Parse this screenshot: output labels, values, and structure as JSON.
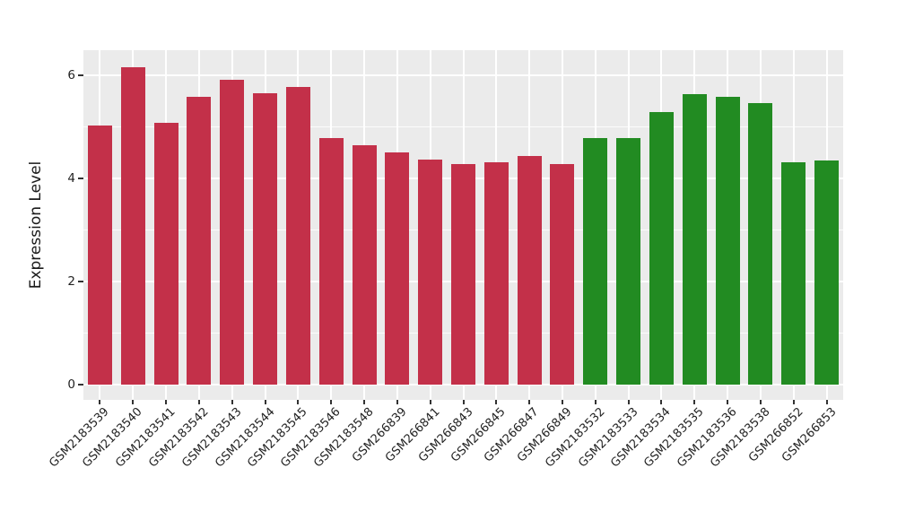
{
  "chart_data": {
    "type": "bar",
    "title": "",
    "xlabel": "",
    "ylabel": "Expression Level",
    "ylim": [
      -0.3,
      6.5
    ],
    "yticks_major": [
      0,
      2,
      4,
      6
    ],
    "yticks_minor": [
      1,
      3,
      5
    ],
    "legend": "none",
    "grid": "white major+minor horizontal lines and per-category vertical lines on gray panel",
    "panel_background": "#EBEBEB",
    "gridline_color": "#FFFFFF",
    "tick_color": "#333333",
    "group_colors": {
      "left_group_red": "#C33049",
      "right_group_green": "#228B22"
    },
    "categories": [
      "GSM2183539",
      "GSM2183540",
      "GSM2183541",
      "GSM2183542",
      "GSM2183543",
      "GSM2183544",
      "GSM2183545",
      "GSM2183546",
      "GSM2183548",
      "GSM266839",
      "GSM266841",
      "GSM266843",
      "GSM266845",
      "GSM266847",
      "GSM266849",
      "GSM2183532",
      "GSM2183533",
      "GSM2183534",
      "GSM2183535",
      "GSM2183536",
      "GSM2183538",
      "GSM266852",
      "GSM266853"
    ],
    "values": [
      5.03,
      6.16,
      5.07,
      5.58,
      5.92,
      5.65,
      5.77,
      4.78,
      4.64,
      4.5,
      4.37,
      4.27,
      4.32,
      4.44,
      4.27,
      4.79,
      4.78,
      5.28,
      5.63,
      5.59,
      5.46,
      4.31,
      4.34
    ],
    "bar_colors": [
      "#C33049",
      "#C33049",
      "#C33049",
      "#C33049",
      "#C33049",
      "#C33049",
      "#C33049",
      "#C33049",
      "#C33049",
      "#C33049",
      "#C33049",
      "#C33049",
      "#C33049",
      "#C33049",
      "#C33049",
      "#228B22",
      "#228B22",
      "#228B22",
      "#228B22",
      "#228B22",
      "#228B22",
      "#228B22",
      "#228B22"
    ]
  }
}
